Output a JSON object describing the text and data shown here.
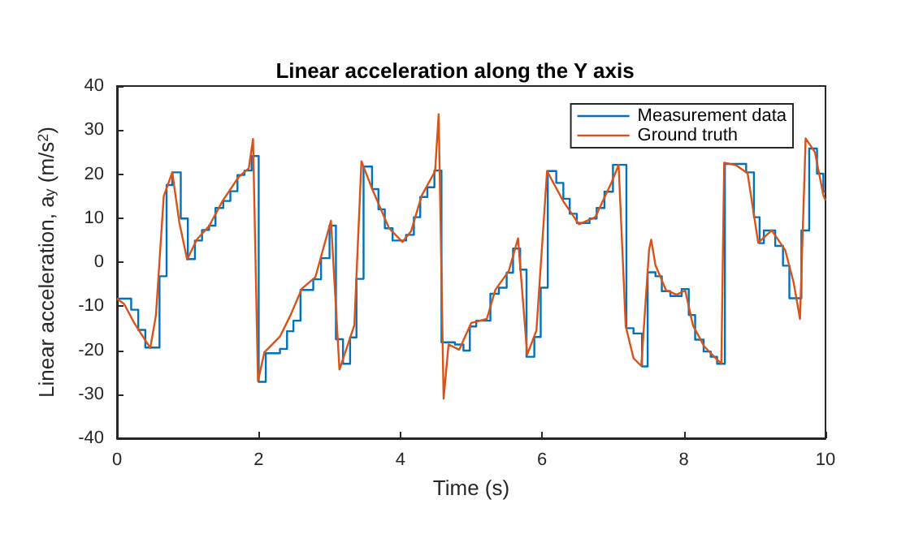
{
  "chart_data": {
    "type": "line",
    "title": "Linear acceleration along the Y axis",
    "xlabel": "Time (s)",
    "ylabel": "Linear acceleration, a$_{y}$ (m/s$^{2}$)",
    "xlim": [
      0,
      10
    ],
    "ylim": [
      -40,
      40
    ],
    "xticks": [
      0,
      2,
      4,
      6,
      8,
      10
    ],
    "yticks": [
      -40,
      -30,
      -20,
      -10,
      0,
      10,
      20,
      30,
      40
    ],
    "legend": "top right",
    "series": [
      {
        "name": "Measurement data",
        "type": "step",
        "color": "#0072bd",
        "x": [
          0,
          0.2,
          0.3,
          0.4,
          0.6,
          0.7,
          0.78,
          0.9,
          1.0,
          1.1,
          1.2,
          1.3,
          1.39,
          1.5,
          1.6,
          1.7,
          1.8,
          1.9,
          2.0,
          2.1,
          2.3,
          2.4,
          2.49,
          2.59,
          2.77,
          2.88,
          3.0,
          3.09,
          3.19,
          3.29,
          3.38,
          3.48,
          3.6,
          3.69,
          3.78,
          3.89,
          4.08,
          4.19,
          4.28,
          4.38,
          4.48,
          4.58,
          4.77,
          4.89,
          4.98,
          5.07,
          5.27,
          5.39,
          5.5,
          5.59,
          5.69,
          5.78,
          5.89,
          5.98,
          6.08,
          6.2,
          6.3,
          6.39,
          6.49,
          6.67,
          6.77,
          6.88,
          7.0,
          7.19,
          7.29,
          7.41,
          7.49,
          7.6,
          7.69,
          7.81,
          7.97,
          8.07,
          8.16,
          8.28,
          8.38,
          8.47,
          8.58,
          8.88,
          8.99,
          9.07,
          9.13,
          9.29,
          9.4,
          9.49,
          9.66,
          9.77,
          9.88,
          9.97,
          10
        ],
        "values": [
          -8.3,
          -10.8,
          -15.4,
          -19.4,
          -3.2,
          17.5,
          20.4,
          9.9,
          0.7,
          4.9,
          7.3,
          8.3,
          12.3,
          13.9,
          16.1,
          19.8,
          20.8,
          24.1,
          -27.2,
          -20.7,
          -19.7,
          -15.7,
          -13.3,
          -6.3,
          -3.9,
          0.9,
          8.3,
          -17.5,
          -23.1,
          -17.1,
          -3.8,
          21.7,
          16.6,
          12,
          7.7,
          4.9,
          6.2,
          10.2,
          14.8,
          17,
          20.8,
          -18.2,
          -18.7,
          -20.1,
          -14.6,
          -13.3,
          -7.2,
          -5.8,
          -2.4,
          3.1,
          -1.7,
          -21.5,
          -17,
          -5.8,
          20.7,
          18,
          14.4,
          11,
          8.9,
          9.9,
          12.3,
          16,
          22.1,
          -15,
          -16.2,
          -23.7,
          -2.3,
          -3.2,
          -6.6,
          -7.7,
          -6.1,
          -12,
          -17.6,
          -20.3,
          -21.5,
          -23.1,
          22.3,
          20.4,
          10.2,
          4.3,
          7.2,
          3.7,
          -0.8,
          -8.2,
          7.2,
          25.8,
          20.1,
          16,
          16
        ]
      },
      {
        "name": "Ground truth",
        "color": "#d95319",
        "x": [
          0,
          0.1,
          0.25,
          0.47,
          0.55,
          0.66,
          0.78,
          0.88,
          0.99,
          1.13,
          1.3,
          1.49,
          1.72,
          1.86,
          1.92,
          1.99,
          2.08,
          2.3,
          2.45,
          2.61,
          2.8,
          3.02,
          3.14,
          3.35,
          3.45,
          3.61,
          3.84,
          4.03,
          4.15,
          4.3,
          4.49,
          4.54,
          4.61,
          4.68,
          4.83,
          5.0,
          5.22,
          5.34,
          5.53,
          5.66,
          5.79,
          5.92,
          6.07,
          6.3,
          6.52,
          6.75,
          6.98,
          7.08,
          7.18,
          7.29,
          7.4,
          7.51,
          7.54,
          7.6,
          7.75,
          7.9,
          8.02,
          8.13,
          8.29,
          8.48,
          8.53,
          8.57,
          8.74,
          8.9,
          9.05,
          9.24,
          9.43,
          9.55,
          9.64,
          9.72,
          9.85,
          9.97,
          10
        ],
        "values": [
          -8.3,
          -9.5,
          -14,
          -19.5,
          -12,
          15,
          20.4,
          9,
          0.6,
          5.2,
          8.2,
          13.9,
          19.4,
          21.3,
          28,
          -27,
          -20.5,
          -16.9,
          -12,
          -6,
          -3.4,
          9.4,
          -24.4,
          -14.3,
          22.9,
          16.3,
          7.7,
          4.6,
          7,
          15.1,
          20.7,
          33.6,
          -31,
          -18.7,
          -19.9,
          -13.8,
          -12.9,
          -6.3,
          -2,
          5.4,
          -21,
          -15.5,
          20.7,
          13.8,
          8.6,
          10.2,
          18.1,
          22.1,
          -14.5,
          -21.8,
          -23.6,
          2.8,
          5.1,
          -0.7,
          -6.4,
          -7.4,
          -6.4,
          -14.4,
          -19.2,
          -22.3,
          -23,
          22.6,
          22,
          20.2,
          4.4,
          7.2,
          2.8,
          -4.6,
          -12.9,
          28.1,
          25,
          15.2,
          14
        ]
      }
    ]
  }
}
